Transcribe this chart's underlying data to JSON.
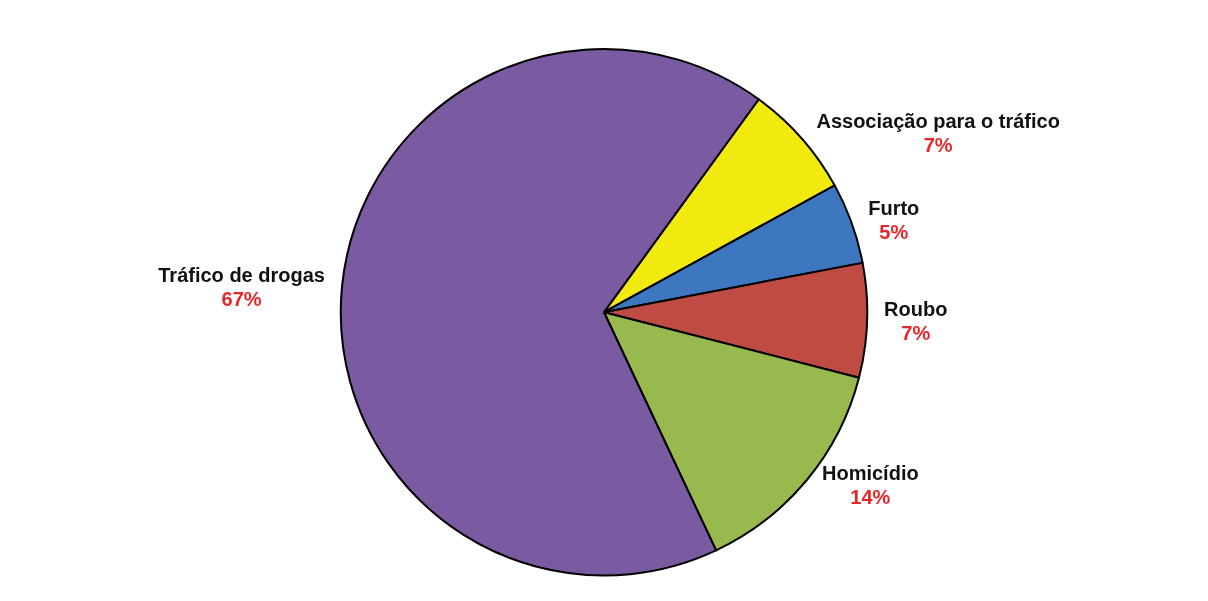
{
  "chart_data": {
    "type": "pie",
    "categories": [
      "Associação para o tráfico",
      "Furto",
      "Roubo",
      "Homicídio",
      "Tráfico de drogas"
    ],
    "values": [
      7,
      5,
      7,
      14,
      67
    ],
    "value_labels": [
      "7%",
      "5%",
      "7%",
      "14%",
      "67%"
    ],
    "colors": [
      "#f2ea0f",
      "#3d77c0",
      "#c04a44",
      "#98b94e",
      "#7a5aa0"
    ],
    "legend": false
  }
}
